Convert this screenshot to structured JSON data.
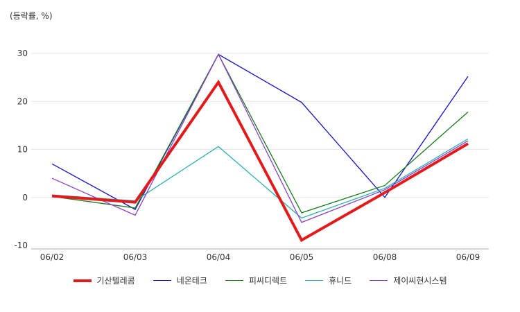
{
  "chart_data": {
    "type": "line",
    "unit_label": "(등락률, %)",
    "categories": [
      "06/02",
      "06/03",
      "06/04",
      "06/05",
      "06/08",
      "06/09"
    ],
    "ylim": [
      -10,
      30
    ],
    "yticks": [
      30,
      20,
      10,
      0,
      -10
    ],
    "grid": true,
    "legend_position": "bottom",
    "series": [
      {
        "name": "기산텔레콤",
        "color": "#e31a1c",
        "emphasis": true,
        "values": [
          0.3,
          -1.0,
          24.0,
          -8.9,
          1.0,
          11.2
        ]
      },
      {
        "name": "네온테크",
        "color": "#1010c8",
        "values": [
          7.0,
          -2.5,
          29.8,
          19.8,
          0.0,
          25.2
        ]
      },
      {
        "name": "피씨디렉트",
        "color": "#1a7a1a",
        "values": [
          0.2,
          -2.2,
          29.8,
          -3.2,
          2.5,
          17.8
        ]
      },
      {
        "name": "휴니드",
        "color": "#2ab0b0",
        "values": [
          0.5,
          -0.7,
          10.6,
          -4.3,
          1.9,
          12.2
        ]
      },
      {
        "name": "제이씨현시스템",
        "color": "#8a3ec8",
        "values": [
          4.0,
          -3.7,
          29.8,
          -5.2,
          1.6,
          11.8
        ]
      }
    ]
  }
}
